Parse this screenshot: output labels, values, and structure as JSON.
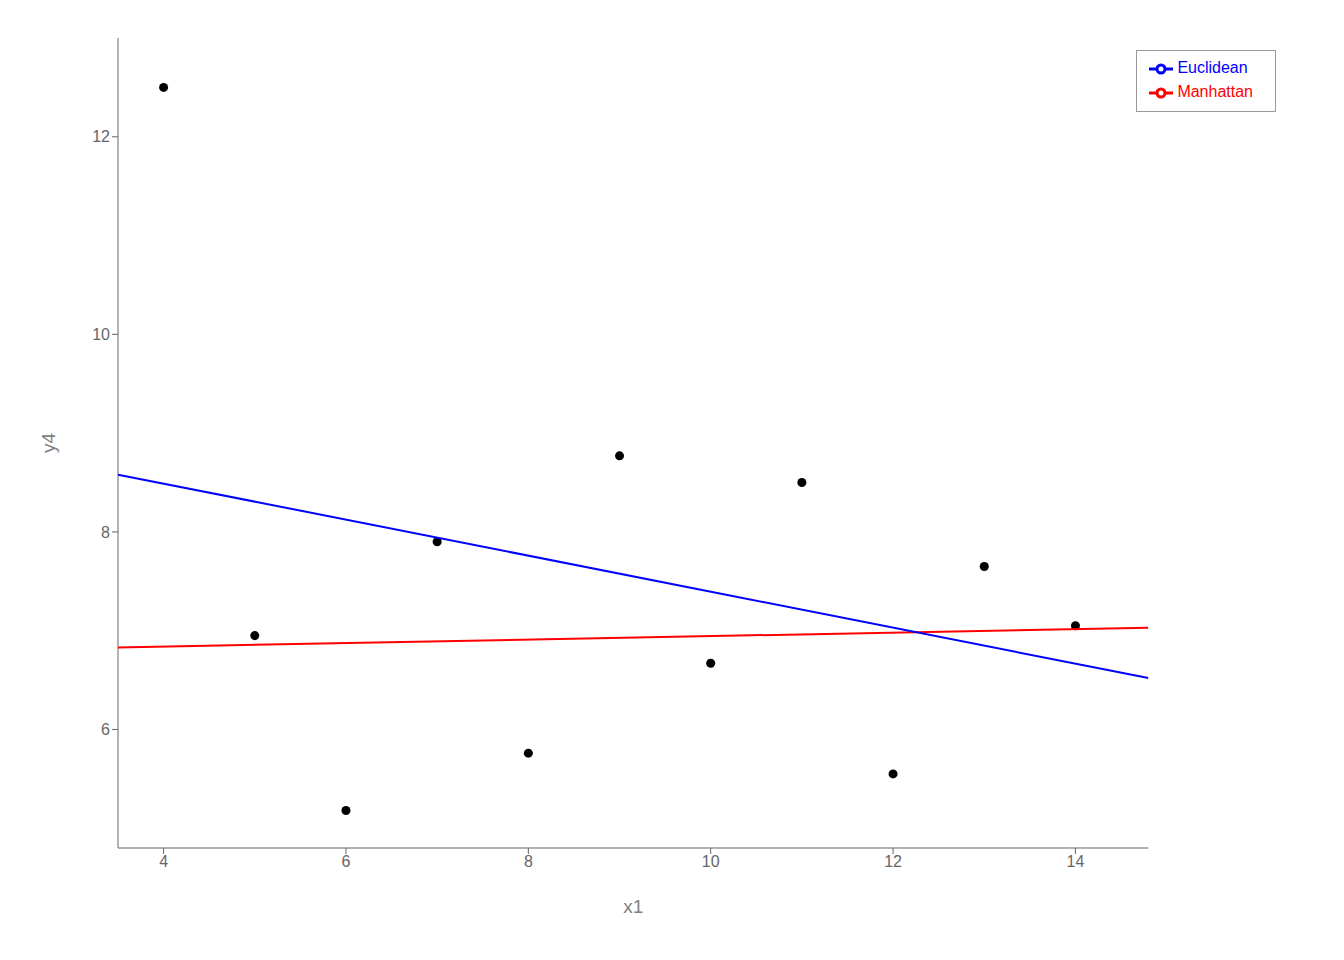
{
  "chart_data": {
    "type": "scatter",
    "xlabel": "x1",
    "ylabel": "y4",
    "xlim": [
      3.5,
      14.8
    ],
    "ylim": [
      4.8,
      13.0
    ],
    "xticks": [
      4,
      6,
      8,
      10,
      12,
      14
    ],
    "yticks": [
      6,
      8,
      10,
      12
    ],
    "legend": "upper right",
    "grid": false,
    "series": [
      {
        "type": "scatter",
        "color": "black",
        "x": [
          4,
          5,
          6,
          7,
          8,
          9,
          10,
          11,
          12,
          13,
          14
        ],
        "values": [
          12.5,
          6.95,
          5.18,
          7.9,
          5.76,
          8.77,
          6.67,
          8.5,
          5.55,
          7.65,
          7.05
        ]
      },
      {
        "name": "Manhattan",
        "type": "line",
        "color": "#FF0000",
        "x": [
          3.5,
          14.8
        ],
        "values": [
          6.83,
          7.03
        ]
      },
      {
        "name": "Euclidean",
        "type": "line",
        "color": "#0000FF",
        "x": [
          3.5,
          14.8
        ],
        "values": [
          8.58,
          6.52
        ]
      }
    ]
  }
}
